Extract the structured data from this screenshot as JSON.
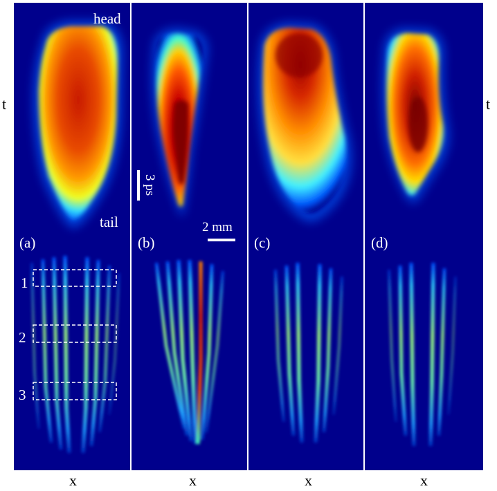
{
  "figure": {
    "axis": {
      "time": "t",
      "position": "x"
    },
    "annotations": {
      "head": "head",
      "tail": "tail"
    },
    "scale_bars": {
      "time": "3 ps",
      "space": "2 mm"
    },
    "panels": [
      {
        "id": "a",
        "label": "(a)"
      },
      {
        "id": "b",
        "label": "(b)"
      },
      {
        "id": "c",
        "label": "(c)"
      },
      {
        "id": "d",
        "label": "(d)"
      }
    ],
    "regions": [
      {
        "label": "1"
      },
      {
        "label": "2"
      },
      {
        "label": "3"
      }
    ],
    "colormap": [
      "#00008c",
      "#0050ff",
      "#00c8ff",
      "#90ff70",
      "#ffe000",
      "#ff5000",
      "#c80000",
      "#8c0000"
    ]
  }
}
